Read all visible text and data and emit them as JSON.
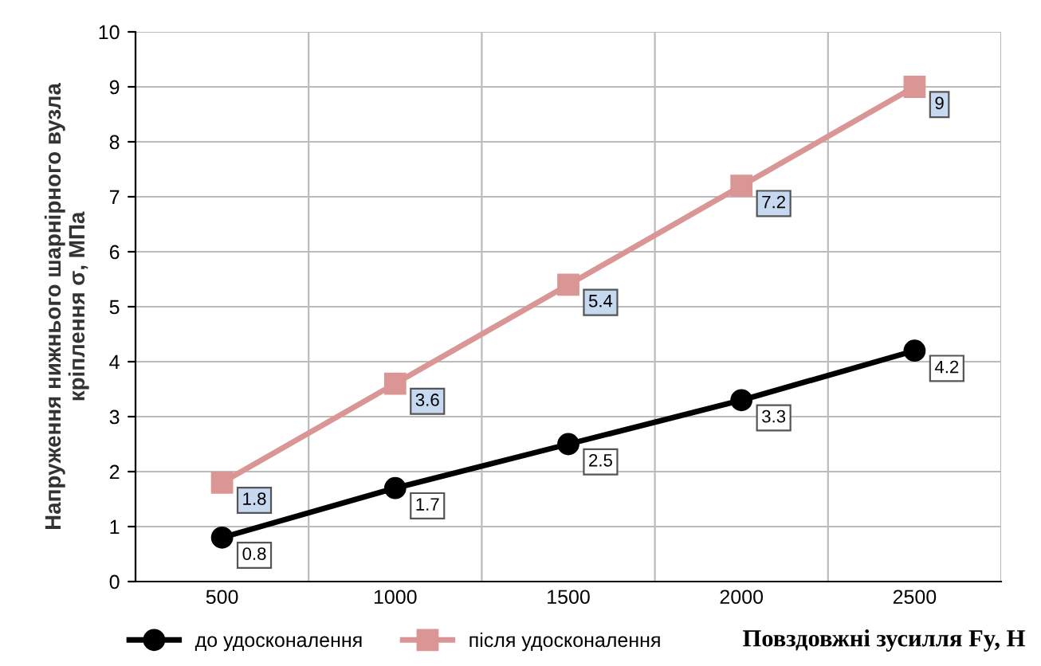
{
  "chart_data": {
    "type": "line",
    "categories": [
      "500",
      "1000",
      "1500",
      "2000",
      "2500"
    ],
    "series": [
      {
        "name": "до удосконалення",
        "color": "#000000",
        "values": [
          0.8,
          1.7,
          2.5,
          3.3,
          4.2
        ],
        "marker": "circle"
      },
      {
        "name": "після удосконалення",
        "color": "#d99694",
        "values": [
          1.8,
          3.6,
          5.4,
          7.2,
          9
        ],
        "marker": "square"
      }
    ],
    "ylabel": "Напруження нижнього шарнірного вузла\nкріплення σ, МПа",
    "xlabel": "Повздовжні зусилля Fy, Н",
    "ylim": [
      0,
      10
    ],
    "yticks": [
      0,
      1,
      2,
      3,
      4,
      5,
      6,
      7,
      8,
      9,
      10
    ],
    "grid": true,
    "legend": "bottom",
    "data_labels": true,
    "line_style": "solid"
  }
}
